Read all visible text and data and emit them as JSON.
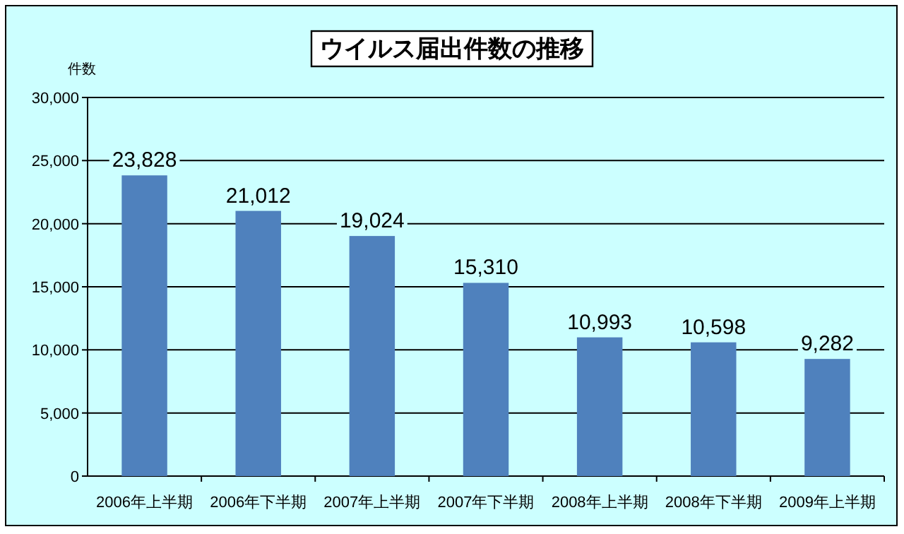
{
  "chart_data": {
    "type": "bar",
    "title": "ウイルス届出件数の推移",
    "ylabel": "件数",
    "categories": [
      "2006年上半期",
      "2006年下半期",
      "2007年上半期",
      "2007年下半期",
      "2008年上半期",
      "2008年下半期",
      "2009年上半期"
    ],
    "values": [
      23828,
      21012,
      19024,
      15310,
      10993,
      10598,
      9282
    ],
    "color": "#4f81bd",
    "ylim": [
      0,
      30000
    ],
    "yticks": [
      {
        "value": 0,
        "label": "0"
      },
      {
        "value": 5000,
        "label": "5,000"
      },
      {
        "value": 10000,
        "label": "10,000"
      },
      {
        "value": 15000,
        "label": "15,000"
      },
      {
        "value": 20000,
        "label": "20,000"
      },
      {
        "value": 25000,
        "label": "25,000"
      },
      {
        "value": 30000,
        "label": "30,000"
      }
    ],
    "grid": "y",
    "value_labels": [
      "23,828",
      "21,012",
      "19,024",
      "15,310",
      "10,993",
      "10,598",
      "9,282"
    ]
  }
}
